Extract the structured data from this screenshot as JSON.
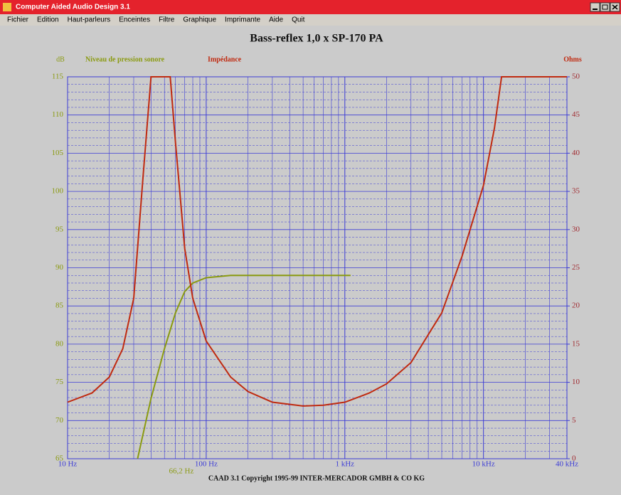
{
  "window": {
    "title": "Computer Aided Audio Design 3.1",
    "menu": [
      "Fichier",
      "Edition",
      "Haut-parleurs",
      "Enceintes",
      "Filtre",
      "Graphique",
      "Imprimante",
      "Aide",
      "Quit"
    ]
  },
  "chart_data": {
    "type": "line",
    "title": "Bass-reflex 1,0 x SP-170 PA",
    "y_label": "dB",
    "y2_label": "Ohms",
    "xscale": "log",
    "grid": true,
    "xlim": [
      10,
      40000
    ],
    "xticks": [
      {
        "value": 10,
        "label": "10 Hz"
      },
      {
        "value": 100,
        "label": "100 Hz"
      },
      {
        "value": 1000,
        "label": "1 kHz"
      },
      {
        "value": 10000,
        "label": "10 kHz"
      },
      {
        "value": 40000,
        "label": "40 kHz"
      }
    ],
    "ylim": [
      65,
      115
    ],
    "yticks": [
      65,
      70,
      75,
      80,
      85,
      90,
      95,
      100,
      105,
      110,
      115
    ],
    "y2lim": [
      0,
      50
    ],
    "y2ticks": [
      0,
      5,
      10,
      15,
      20,
      25,
      30,
      35,
      40,
      45,
      50
    ],
    "annotation": {
      "x": 66.2,
      "label": "66,2 Hz"
    },
    "series": [
      {
        "name": "Niveau de pression sonore",
        "color": "#8a9a10",
        "axis": "y",
        "x": [
          32,
          40,
          50,
          60,
          70,
          80,
          100,
          150,
          200,
          500,
          1000,
          1100
        ],
        "values": [
          65,
          72.9,
          79.4,
          84.1,
          86.9,
          88,
          88.7,
          89,
          89,
          89,
          89,
          89
        ]
      },
      {
        "name": "Impédance",
        "color": "#c02a10",
        "axis": "y2",
        "x": [
          10,
          15,
          20,
          25,
          30,
          35,
          40,
          45,
          50,
          55,
          60,
          70,
          80,
          100,
          150,
          200,
          300,
          500,
          700,
          1000,
          1500,
          2000,
          3000,
          5000,
          7000,
          10000,
          12000,
          13500,
          20000,
          40000
        ],
        "values": [
          7.4,
          8.6,
          10.7,
          14.4,
          21,
          36.8,
          50,
          50,
          50,
          50,
          41.4,
          27.5,
          21,
          15.4,
          10.7,
          8.8,
          7.4,
          6.9,
          7,
          7.4,
          8.6,
          9.8,
          12.6,
          19.1,
          26.5,
          35.8,
          43.3,
          50,
          50,
          50
        ]
      }
    ]
  },
  "footer": "CAAD 3.1   Copyright 1995-99 INTER-MERCADOR GMBH & CO KG"
}
